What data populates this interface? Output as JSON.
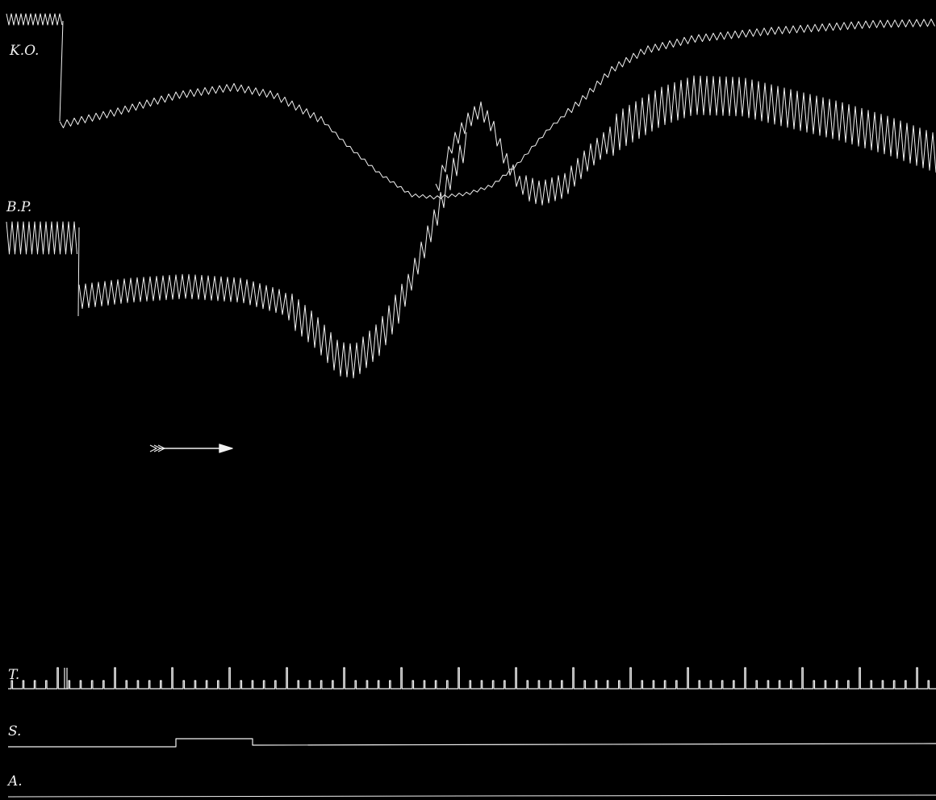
{
  "chart_data": {
    "type": "line",
    "title": "",
    "xlabel": "",
    "ylabel": "",
    "background": "#000000",
    "trace_color": "#f2f2f2",
    "series": [
      {
        "name": "K.O.",
        "key": "ko"
      },
      {
        "name": "B.P.",
        "key": "bp"
      },
      {
        "name": "T.",
        "key": "time"
      },
      {
        "name": "S.",
        "key": "signal"
      },
      {
        "name": "A.",
        "key": "abscissa"
      }
    ],
    "annotations": [
      {
        "type": "arrow",
        "meaning": "direction of recording",
        "direction": "right"
      }
    ]
  }
}
